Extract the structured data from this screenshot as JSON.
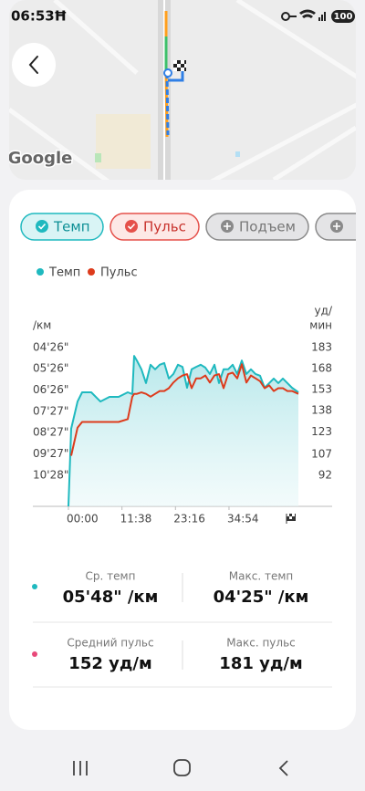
{
  "status_bar": {
    "time": "06:53",
    "battery": "100"
  },
  "map": {
    "attribution": "Google"
  },
  "tabs": [
    "Темп",
    "Пульс",
    "Подъем"
  ],
  "chart_data": {
    "type": "line",
    "y_label": "/км",
    "y2_label": [
      "уд/",
      "мин"
    ],
    "x": [
      0,
      36,
      119,
      179,
      298,
      417,
      536,
      655,
      774,
      833,
      857,
      893,
      952,
      1012,
      1071,
      1131,
      1190,
      1250,
      1309,
      1369,
      1428,
      1488,
      1547,
      1607,
      1666,
      1726,
      1785,
      1845,
      1904,
      1964,
      2023,
      2083,
      2142,
      2202,
      2261,
      2321,
      2380,
      2440,
      2499,
      2559,
      2618,
      2678,
      2737,
      2797,
      2856,
      2916,
      2999
    ],
    "xlim": [
      0,
      2999
    ],
    "xticks": [
      {
        "value": 0,
        "label": "00:00"
      },
      {
        "value": 698,
        "label": "11:38"
      },
      {
        "value": 1396,
        "label": "23:16"
      },
      {
        "value": 2094,
        "label": "34:54"
      }
    ],
    "ylim": [
      716,
      238
    ],
    "yticks": [
      {
        "value": 266,
        "label": "04'26\""
      },
      {
        "value": 326,
        "label": "05'26\""
      },
      {
        "value": 386,
        "label": "06'26\""
      },
      {
        "value": 447,
        "label": "07'27\""
      },
      {
        "value": 507,
        "label": "08'27\""
      },
      {
        "value": 567,
        "label": "09'27\""
      },
      {
        "value": 628,
        "label": "10'28\""
      }
    ],
    "y2lim": [
      70,
      190
    ],
    "y2ticks": [
      183,
      168,
      153,
      138,
      123,
      107,
      92
    ],
    "grid": false,
    "series": [
      {
        "name": "Темп",
        "color": "#1fb9bf",
        "values": [
          716,
          496,
          419,
          393,
          393,
          419,
          406,
          406,
          393,
          398,
          290,
          303,
          328,
          367,
          315,
          328,
          315,
          310,
          354,
          341,
          315,
          321,
          380,
          328,
          321,
          315,
          323,
          341,
          315,
          367,
          328,
          328,
          315,
          341,
          303,
          341,
          328,
          341,
          346,
          380,
          367,
          354,
          367,
          354,
          367,
          380,
          393
        ]
      },
      {
        "name": "Пульс",
        "color": "#dd3b1c",
        "axis": "y2",
        "values": [
          null,
          106,
          126,
          130,
          130,
          130,
          130,
          130,
          132,
          148,
          150,
          150,
          151,
          150,
          148,
          150,
          152,
          152,
          154,
          158,
          161,
          163,
          164,
          154,
          161,
          161,
          163,
          158,
          163,
          164,
          154,
          164,
          165,
          161,
          171,
          158,
          163,
          161,
          159,
          154,
          156,
          152,
          154,
          154,
          152,
          152,
          150
        ]
      }
    ]
  },
  "stats": [
    {
      "label": "Ср. темп",
      "value": "05'48\" /км"
    },
    {
      "label": "Макс. темп",
      "value": "04'25\" /км"
    },
    {
      "label": "Средний пульс",
      "value": "152 уд/м"
    },
    {
      "label": "Макс. пульс",
      "value": "181 уд/м"
    }
  ]
}
